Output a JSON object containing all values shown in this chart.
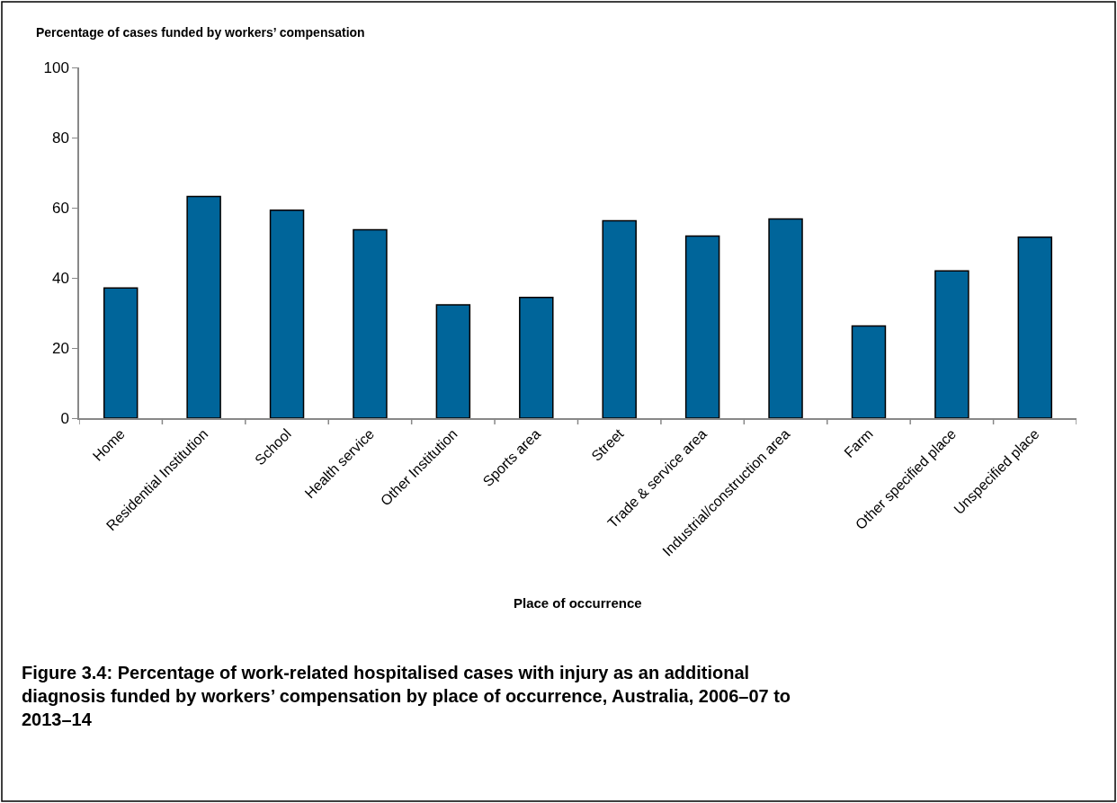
{
  "chart_data": {
    "type": "bar",
    "ylabel": "Percentage of cases funded by workers’ compensation",
    "xlabel": "Place of occurrence",
    "categories": [
      "Home",
      "Residential Institution",
      "School",
      "Health service",
      "Other Institution",
      "Sports area",
      "Street",
      "Trade & service area",
      "Industrial/construction area",
      "Farm",
      "Other specified place",
      "Unspecified place"
    ],
    "values": [
      37.1,
      63.2,
      59.3,
      53.7,
      32.3,
      34.4,
      56.3,
      51.9,
      56.8,
      26.3,
      42.0,
      51.6
    ],
    "color": "#00659a",
    "ylim": [
      0,
      100
    ],
    "yticks": [
      0,
      20,
      40,
      60,
      80,
      100
    ],
    "legend": false,
    "annotations": [
      "Figure 3.4: Percentage of work-related hospitalised cases with injury as an additional diagnosis funded by workers’ compensation by place of occurrence, Australia, 2006–07 to 2013–14"
    ]
  }
}
